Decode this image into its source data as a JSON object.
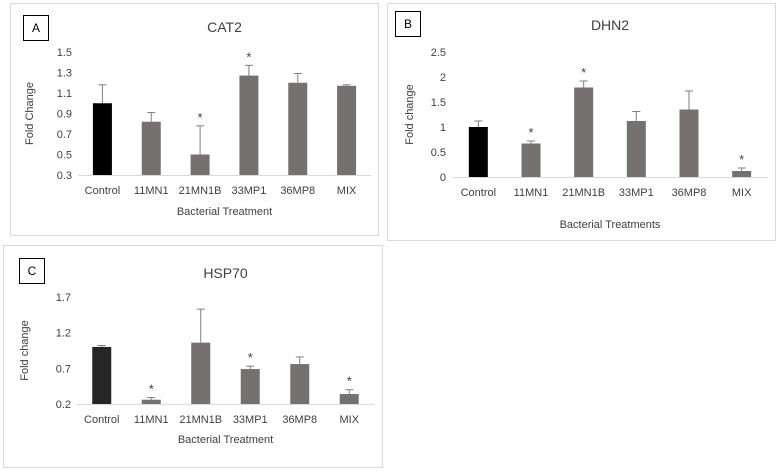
{
  "chart_data": [
    {
      "type": "bar",
      "panel_label": "A",
      "title": "CAT2",
      "xlabel": "Bacterial Treatment",
      "ylabel": "Fold Change",
      "ylim": [
        0.3,
        1.5
      ],
      "yticks": [
        "0.3",
        "0.5",
        "0.7",
        "0.9",
        "1.1",
        "1.3",
        "1.5"
      ],
      "categories": [
        "Control",
        "11MN1",
        "21MN1B",
        "33MP1",
        "36MP8",
        "MIX"
      ],
      "values": [
        1.0,
        0.82,
        0.5,
        1.27,
        1.2,
        1.17
      ],
      "errors": [
        0.18,
        0.09,
        0.28,
        0.1,
        0.09,
        0.01
      ],
      "significance": [
        "",
        "",
        "*",
        "*",
        "",
        ""
      ],
      "colors": [
        "#000000",
        "#767171",
        "#767171",
        "#767171",
        "#767171",
        "#767171"
      ],
      "grid": false
    },
    {
      "type": "bar",
      "panel_label": "B",
      "title": "DHN2",
      "xlabel": "Bacterial Treatments",
      "ylabel": "Fold change",
      "ylim": [
        0,
        2.5
      ],
      "yticks": [
        "0",
        "0.5",
        "1",
        "1.5",
        "2",
        "2.5"
      ],
      "categories": [
        "Control",
        "11MN1",
        "21MN1B",
        "33MP1",
        "36MP8",
        "MIX"
      ],
      "values": [
        1.0,
        0.67,
        1.79,
        1.12,
        1.35,
        0.12
      ],
      "errors": [
        0.12,
        0.05,
        0.13,
        0.19,
        0.37,
        0.06
      ],
      "significance": [
        "",
        "*",
        "*",
        "",
        "",
        "*"
      ],
      "colors": [
        "#000000",
        "#767171",
        "#767171",
        "#767171",
        "#767171",
        "#767171"
      ],
      "grid": false
    },
    {
      "type": "bar",
      "panel_label": "C",
      "title": "HSP70",
      "xlabel": "Bacterial Treatment",
      "ylabel": "Fold change",
      "ylim": [
        0.2,
        1.7
      ],
      "yticks": [
        "0.2",
        "0.7",
        "1.2",
        "1.7"
      ],
      "categories": [
        "Control",
        "11MN1",
        "21MN1B",
        "33MP1",
        "36MP8",
        "MIX"
      ],
      "values": [
        1.0,
        0.26,
        1.06,
        0.69,
        0.76,
        0.34
      ],
      "errors": [
        0.02,
        0.03,
        0.47,
        0.04,
        0.1,
        0.06
      ],
      "significance": [
        "",
        "*",
        "",
        "*",
        "",
        "*"
      ],
      "colors": [
        "#262626",
        "#767171",
        "#767171",
        "#767171",
        "#767171",
        "#767171"
      ],
      "grid": false
    }
  ]
}
